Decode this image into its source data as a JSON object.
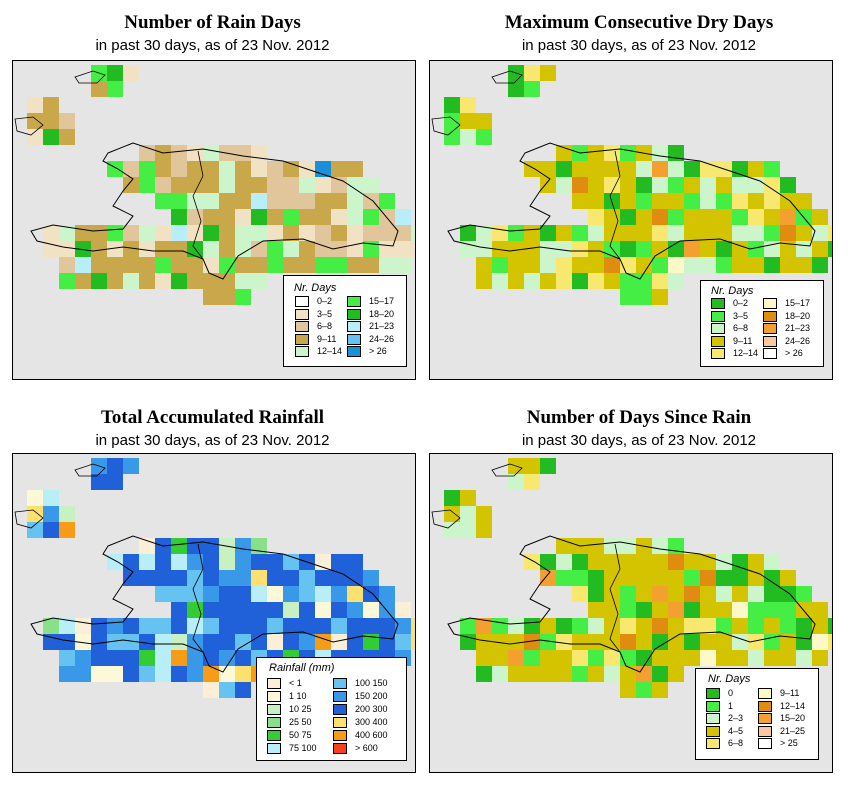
{
  "panels": [
    {
      "title": "Number of Rain Days",
      "subtitle": "in past 30 days, as of  23 Nov. 2012",
      "legend_title": "Nr. Days",
      "legend": [
        {
          "label": "0–2",
          "color": "#ffffff"
        },
        {
          "label": "3–5",
          "color": "#f2e2c4"
        },
        {
          "label": "6–8",
          "color": "#e2c69b"
        },
        {
          "label": "9–11",
          "color": "#c9a84b"
        },
        {
          "label": "12–14",
          "color": "#ccf5cc"
        },
        {
          "label": "15–17",
          "color": "#44ee44"
        },
        {
          "label": "18–20",
          "color": "#22bb22"
        },
        {
          "label": "21–23",
          "color": "#b8eef8"
        },
        {
          "label": "24–26",
          "color": "#66c2f0"
        },
        {
          "label": "> 26",
          "color": "#1a90d8"
        }
      ]
    },
    {
      "title": "Maximum Consecutive Dry Days",
      "subtitle": "in past 30 days, as of  23 Nov. 2012",
      "legend_title": "Nr. Days",
      "legend": [
        {
          "label": "0–2",
          "color": "#22bb22"
        },
        {
          "label": "3–5",
          "color": "#44ee44"
        },
        {
          "label": "6–8",
          "color": "#ccf5cc"
        },
        {
          "label": "9–11",
          "color": "#d4c400"
        },
        {
          "label": "12–14",
          "color": "#f8e870"
        },
        {
          "label": "15–17",
          "color": "#fcf8c8"
        },
        {
          "label": "18–20",
          "color": "#e08c10"
        },
        {
          "label": "21–23",
          "color": "#f4a030"
        },
        {
          "label": "24–26",
          "color": "#f8c8a0"
        },
        {
          "label": "> 26",
          "color": "#ffffff"
        }
      ]
    },
    {
      "title": "Total Accumulated Rainfall",
      "subtitle": "in past 30 days, as of  23 Nov. 2012",
      "legend_title": "Rainfall (mm)",
      "legend": [
        {
          "label": "< 1",
          "color": "#fcefd8"
        },
        {
          "label": "1   10",
          "color": "#fcf8d8"
        },
        {
          "label": "10   25",
          "color": "#c8f0c0"
        },
        {
          "label": "25   50",
          "color": "#88e088"
        },
        {
          "label": "50   75",
          "color": "#33cc33"
        },
        {
          "label": "75  100",
          "color": "#b8eef8"
        },
        {
          "label": "100  150",
          "color": "#66c2f0"
        },
        {
          "label": "150  200",
          "color": "#3a98e8"
        },
        {
          "label": "200  300",
          "color": "#2060d8"
        },
        {
          "label": "300  400",
          "color": "#fce070"
        },
        {
          "label": "400  600",
          "color": "#f89c18"
        },
        {
          "label": "> 600",
          "color": "#f84020"
        }
      ]
    },
    {
      "title": "Number of Days Since Rain",
      "subtitle": "in past 30 days, as of  23 Nov. 2012",
      "legend_title": "Nr. Days",
      "legend": [
        {
          "label": "0",
          "color": "#22bb22"
        },
        {
          "label": "1",
          "color": "#44ee44"
        },
        {
          "label": "2–3",
          "color": "#ccf5cc"
        },
        {
          "label": "4–5",
          "color": "#d4c400"
        },
        {
          "label": "6–8",
          "color": "#f8e870"
        },
        {
          "label": "9–11",
          "color": "#fcf8c8"
        },
        {
          "label": "12–14",
          "color": "#e08c10"
        },
        {
          "label": "15–20",
          "color": "#f4a030"
        },
        {
          "label": "21–25",
          "color": "#f8c8a0"
        },
        {
          "label": "> 25",
          "color": "#ffffff"
        }
      ]
    }
  ]
}
